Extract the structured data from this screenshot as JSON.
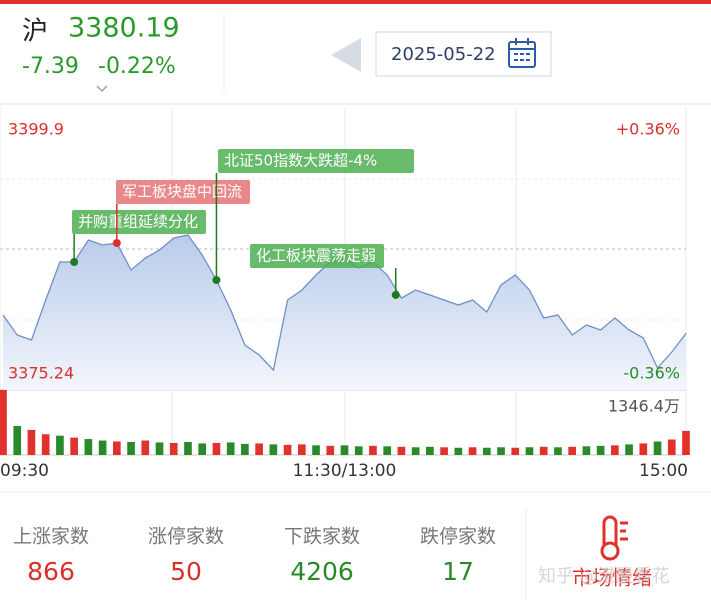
{
  "header": {
    "name": "沪",
    "price": 3380.19,
    "change": -7.39,
    "change_pct": {
      "value": -0.22,
      "label": "-0.22%"
    },
    "date": "2025-05-22"
  },
  "chart_data": {
    "type": "line",
    "x": [
      0,
      5,
      10,
      15,
      20,
      25,
      30,
      35,
      40,
      45,
      50,
      55,
      60,
      65,
      70,
      75,
      80,
      85,
      90,
      95,
      100,
      105,
      110,
      115,
      120,
      125,
      130,
      135,
      140,
      145,
      150,
      155,
      160,
      165,
      170,
      175,
      180,
      185,
      190,
      195,
      200,
      205,
      210,
      215,
      220,
      225,
      230,
      235,
      240
    ],
    "xlim": [
      0,
      240
    ],
    "xticks": [
      {
        "value": 0,
        "label": "09:30"
      },
      {
        "value": 120,
        "label": "11:30/13:00"
      },
      {
        "value": 240,
        "label": "15:00"
      }
    ],
    "series": [
      {
        "color": "#6f8fc9",
        "values": [
          3381.8,
          3380.05,
          3379.61,
          3383.11,
          3386.43,
          3386.43,
          3388.36,
          3387.92,
          3388.09,
          3385.73,
          3386.78,
          3387.48,
          3388.53,
          3388.79,
          3387.04,
          3384.86,
          3382.24,
          3379.17,
          3378.3,
          3376.99,
          3383.11,
          3383.98,
          3385.3,
          3386.43,
          3386.78,
          3385.91,
          3386.43,
          3385.3,
          3383.28,
          3383.98,
          3383.55,
          3383.11,
          3382.67,
          3383.11,
          3382.06,
          3384.42,
          3385.3,
          3383.98,
          3381.54,
          3381.8,
          3380.05,
          3380.92,
          3380.49,
          3381.54,
          3380.49,
          3379.79,
          3377.16,
          3378.56,
          3380.19
        ]
      }
    ],
    "ylim": [
      3375.24,
      3399.9
    ],
    "yticks": [
      3399.9,
      3375.24
    ],
    "y2lim": [
      -0.36,
      0.36
    ],
    "y2ticks": [
      {
        "value": 0.36,
        "label": "+0.36%"
      },
      {
        "value": -0.36,
        "label": "-0.36%"
      }
    ],
    "annotations": [
      {
        "text": "并购重组延续分化",
        "x": 25,
        "value": 3386.43,
        "color": "#4caf50"
      },
      {
        "text": "军工板块盘中回流",
        "x": 40,
        "value": 3388.09,
        "color": "#e57373"
      },
      {
        "text": "北证50指数大跌超-4%",
        "x": 75,
        "value": 3384.86,
        "color": "#4caf50"
      },
      {
        "text": "化工板块震荡走弱",
        "x": 138,
        "value": 3383.55,
        "color": "#4caf50"
      }
    ],
    "volume": {
      "values": [
        1346.4,
        600,
        520,
        430,
        400,
        360,
        330,
        300,
        280,
        270,
        300,
        260,
        250,
        270,
        240,
        250,
        260,
        230,
        240,
        220,
        210,
        220,
        200,
        190,
        200,
        180,
        190,
        180,
        170,
        160,
        170,
        160,
        150,
        160,
        150,
        160,
        150,
        160,
        170,
        160,
        170,
        180,
        190,
        200,
        220,
        240,
        280,
        320,
        500
      ],
      "colors": [
        "#e0312d",
        "#2a8a2a",
        "#e0312d",
        "#e0312d",
        "#2a8a2a",
        "#e0312d",
        "#2a8a2a",
        "#2a8a2a",
        "#e0312d",
        "#2a8a2a",
        "#e0312d",
        "#2a8a2a",
        "#e0312d",
        "#2a8a2a",
        "#2a8a2a",
        "#e0312d",
        "#2a8a2a",
        "#2a8a2a",
        "#e0312d",
        "#2a8a2a",
        "#e0312d",
        "#e0312d",
        "#2a8a2a",
        "#e0312d",
        "#2a8a2a",
        "#2a8a2a",
        "#e0312d",
        "#2a8a2a",
        "#e0312d",
        "#2a8a2a",
        "#2a8a2a",
        "#e0312d",
        "#2a8a2a",
        "#e0312d",
        "#2a8a2a",
        "#2a8a2a",
        "#e0312d",
        "#2a8a2a",
        "#e0312d",
        "#2a8a2a",
        "#e0312d",
        "#2a8a2a",
        "#2a8a2a",
        "#e0312d",
        "#2a8a2a",
        "#e0312d",
        "#2a8a2a",
        "#e0312d",
        "#e0312d"
      ],
      "ylim": [
        0,
        1346.4
      ],
      "yticks": [
        {
          "value": 1346.4,
          "label": "1346.4万"
        }
      ]
    }
  },
  "market_stats": [
    {
      "label": "上涨家数",
      "value": 866,
      "color": "#d9302b"
    },
    {
      "label": "涨停家数",
      "value": 50,
      "color": "#d9302b"
    },
    {
      "label": "下跌家数",
      "value": 4206,
      "color": "#2a8a2a"
    },
    {
      "label": "跌停家数",
      "value": 17,
      "color": "#2a8a2a"
    }
  ],
  "sentiment": "市场情绪",
  "watermark": "知乎 @港股看花"
}
